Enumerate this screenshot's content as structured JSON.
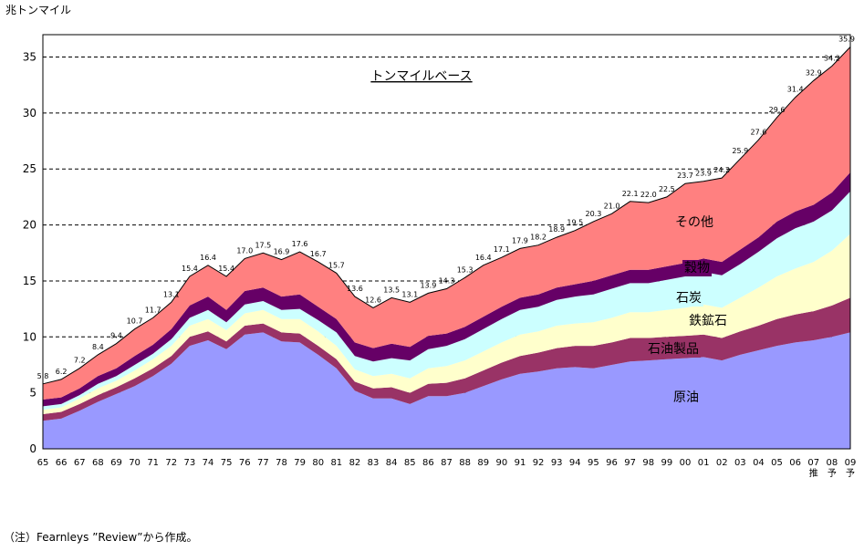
{
  "unit_label": "兆トンマイル",
  "footnote": "（注）Fearnleys ”Review”から作成。",
  "chart_data": {
    "type": "area",
    "stacked": true,
    "title": "トンマイルベース",
    "ylabel": "兆トンマイル",
    "ylim": [
      0,
      37
    ],
    "yticks": [
      0,
      5,
      10,
      15,
      20,
      25,
      30,
      35
    ],
    "grid": "dashed horizontal",
    "x": [
      "65",
      "66",
      "67",
      "68",
      "69",
      "70",
      "71",
      "72",
      "73",
      "74",
      "75",
      "76",
      "77",
      "78",
      "79",
      "80",
      "81",
      "82",
      "83",
      "84",
      "85",
      "86",
      "87",
      "88",
      "89",
      "90",
      "91",
      "92",
      "93",
      "94",
      "95",
      "96",
      "97",
      "98",
      "99",
      "00",
      "01",
      "02",
      "03",
      "04",
      "05",
      "06",
      "07",
      "08",
      "09"
    ],
    "x_notes": [
      {
        "x": "07",
        "text": "推"
      },
      {
        "x": "08",
        "text": "予"
      },
      {
        "x": "09",
        "text": "予"
      }
    ],
    "totals": [
      5.8,
      6.2,
      7.2,
      8.4,
      9.4,
      10.7,
      11.7,
      13.1,
      15.4,
      16.4,
      15.4,
      17.0,
      17.5,
      16.9,
      17.6,
      16.7,
      15.7,
      13.6,
      12.6,
      13.5,
      13.1,
      13.9,
      14.3,
      15.3,
      16.4,
      17.1,
      17.9,
      18.2,
      18.9,
      19.5,
      20.3,
      21.0,
      22.1,
      22.0,
      22.5,
      23.7,
      23.9,
      24.2,
      25.9,
      27.6,
      29.6,
      31.4,
      32.9,
      34.2,
      35.9
    ],
    "total_labels": [
      "5.8",
      "6.2",
      "7.2",
      "8.4",
      "9.4",
      "10.7",
      "11.7",
      "13.1",
      "15.4",
      "16.4",
      "15.4",
      "17.0",
      "17.5",
      "16.9",
      "17.6",
      "16.7",
      "15.7",
      "13.6",
      "12.6",
      "13.5",
      "13.1",
      "13.9",
      "14.3",
      "15.3",
      "16.4",
      "17.1",
      "17.9",
      "18.2",
      "18.9",
      "19.5",
      "20.3",
      "21.0",
      "22.1",
      "22.0",
      "22.5",
      "23.7",
      "23.9",
      "24.2",
      "25.9",
      "27.6",
      "29.6",
      "31.4",
      "32.9",
      "34.2",
      "35.9"
    ],
    "series": [
      {
        "name": "原油",
        "color": "#9999FF",
        "values": [
          2.5,
          2.7,
          3.4,
          4.2,
          4.9,
          5.6,
          6.5,
          7.6,
          9.2,
          9.7,
          8.9,
          10.2,
          10.4,
          9.6,
          9.5,
          8.4,
          7.2,
          5.2,
          4.5,
          4.5,
          4.0,
          4.7,
          4.7,
          5.0,
          5.6,
          6.2,
          6.7,
          6.9,
          7.2,
          7.3,
          7.2,
          7.5,
          7.8,
          7.9,
          8.0,
          8.1,
          8.2,
          7.9,
          8.4,
          8.8,
          9.2,
          9.5,
          9.7,
          10.0,
          10.4
        ]
      },
      {
        "name": "石油製品",
        "color": "#993366",
        "values": [
          0.6,
          0.6,
          0.6,
          0.6,
          0.6,
          0.7,
          0.7,
          0.7,
          0.8,
          0.8,
          0.7,
          0.8,
          0.8,
          0.8,
          0.8,
          0.8,
          0.8,
          0.8,
          0.9,
          1.0,
          1.0,
          1.1,
          1.2,
          1.3,
          1.4,
          1.5,
          1.6,
          1.7,
          1.8,
          1.9,
          2.0,
          2.0,
          2.1,
          2.0,
          2.0,
          2.0,
          2.0,
          2.0,
          2.1,
          2.2,
          2.4,
          2.5,
          2.6,
          2.8,
          3.1
        ]
      },
      {
        "name": "鉄鉱石",
        "color": "#FFFFCC",
        "values": [
          0.4,
          0.4,
          0.5,
          0.6,
          0.6,
          0.7,
          0.8,
          0.9,
          1.0,
          1.1,
          1.0,
          1.1,
          1.2,
          1.2,
          1.3,
          1.3,
          1.2,
          1.1,
          1.1,
          1.2,
          1.3,
          1.4,
          1.5,
          1.6,
          1.7,
          1.8,
          1.9,
          1.9,
          2.0,
          2.0,
          2.1,
          2.2,
          2.3,
          2.3,
          2.4,
          2.5,
          2.7,
          2.7,
          3.0,
          3.4,
          3.8,
          4.1,
          4.4,
          4.9,
          5.7
        ]
      },
      {
        "name": "石炭",
        "color": "#CCFFFF",
        "values": [
          0.3,
          0.3,
          0.3,
          0.4,
          0.4,
          0.5,
          0.5,
          0.6,
          0.7,
          0.8,
          0.7,
          0.8,
          0.8,
          0.8,
          0.9,
          1.0,
          1.2,
          1.2,
          1.3,
          1.4,
          1.6,
          1.7,
          1.8,
          1.9,
          2.0,
          2.1,
          2.2,
          2.2,
          2.3,
          2.4,
          2.5,
          2.6,
          2.6,
          2.6,
          2.7,
          2.8,
          2.9,
          2.9,
          3.0,
          3.2,
          3.4,
          3.6,
          3.6,
          3.6,
          3.8
        ]
      },
      {
        "name": "穀物",
        "color": "#660066",
        "values": [
          0.6,
          0.6,
          0.6,
          0.7,
          0.7,
          0.8,
          0.8,
          0.9,
          1.1,
          1.2,
          1.1,
          1.2,
          1.2,
          1.2,
          1.3,
          1.2,
          1.2,
          1.2,
          1.2,
          1.3,
          1.2,
          1.2,
          1.1,
          1.1,
          1.1,
          1.1,
          1.1,
          1.1,
          1.1,
          1.1,
          1.2,
          1.2,
          1.2,
          1.2,
          1.2,
          1.2,
          1.2,
          1.2,
          1.3,
          1.3,
          1.5,
          1.5,
          1.5,
          1.6,
          1.7
        ]
      },
      {
        "name": "その他",
        "color": "#FF8080",
        "values": [
          1.4,
          1.6,
          1.8,
          1.9,
          2.2,
          2.4,
          2.4,
          2.4,
          2.6,
          2.8,
          3.0,
          2.9,
          3.1,
          3.3,
          3.8,
          4.0,
          4.1,
          4.1,
          3.6,
          4.1,
          4.0,
          3.8,
          4.0,
          4.4,
          4.6,
          4.4,
          4.4,
          4.4,
          4.5,
          4.8,
          5.3,
          5.5,
          6.1,
          6.0,
          6.2,
          7.1,
          6.9,
          7.5,
          8.1,
          8.7,
          9.3,
          10.2,
          11.1,
          11.3,
          11.2
        ]
      }
    ]
  }
}
